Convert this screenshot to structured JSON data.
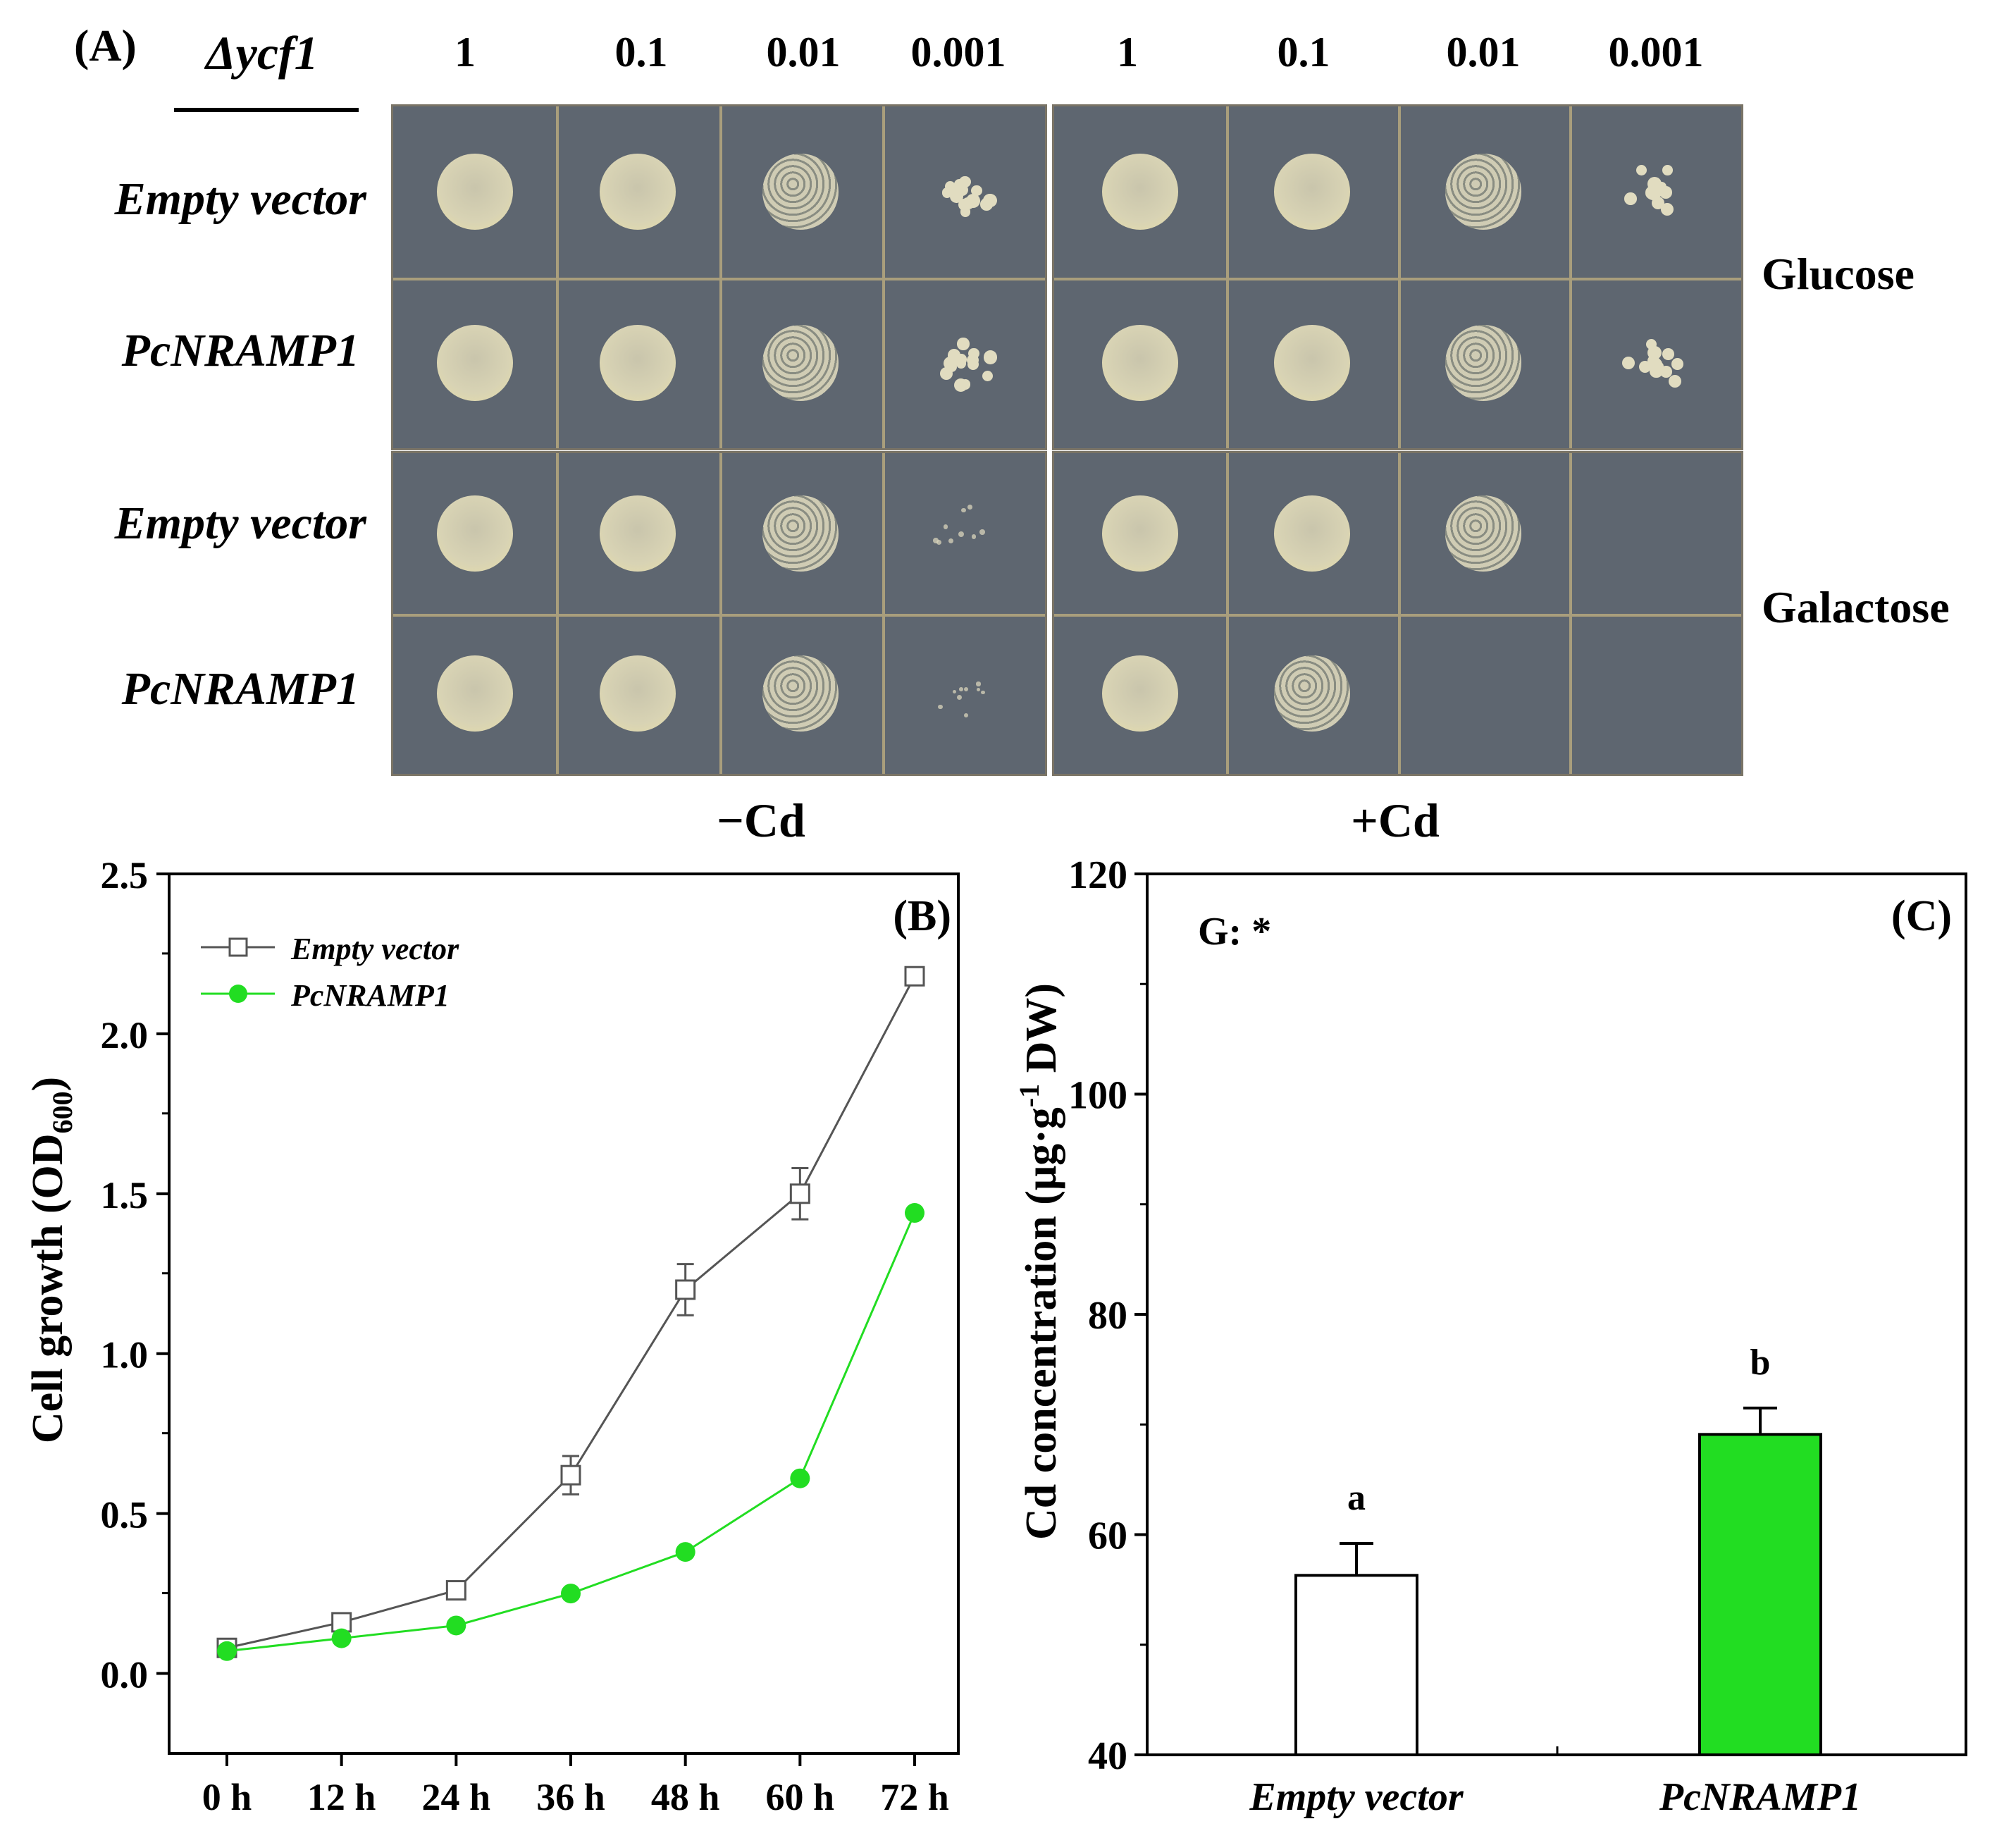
{
  "panel_a": {
    "label": "(A)",
    "strain_label": "Δycf1",
    "dilutions": [
      "1",
      "0.1",
      "0.01",
      "0.001",
      "1",
      "0.1",
      "0.01",
      "0.001"
    ],
    "rows": [
      "Empty vector",
      "PcNRAMP1",
      "Empty vector",
      "PcNRAMP1"
    ],
    "medium_labels": [
      "Glucose",
      "Galactose"
    ],
    "condition_labels": [
      "−Cd",
      "+Cd"
    ],
    "colors": {
      "plate": "#5e6670",
      "gridline": "#a99e7c",
      "yeast": "#d9d4b6"
    }
  },
  "chart_data": [
    {
      "type": "line",
      "panel_label": "(B)",
      "title": "",
      "xlabel": "",
      "ylabel": "Cell growth (OD600)",
      "ylabel_main": "Cell growth (OD",
      "ylabel_sub": "600",
      "ylabel_close": ")",
      "categories": [
        "0 h",
        "12 h",
        "24 h",
        "36 h",
        "48 h",
        "60 h",
        "72 h"
      ],
      "ylim": [
        -0.25,
        2.5
      ],
      "yticks": [
        "0.0",
        "0.5",
        "1.0",
        "1.5",
        "2.0",
        "2.5"
      ],
      "legend_position": "top-left",
      "series": [
        {
          "name": "Empty vector",
          "color": "#555555",
          "marker": "open-square",
          "values": [
            0.08,
            0.16,
            0.26,
            0.62,
            1.2,
            1.5,
            2.18
          ],
          "errors": [
            0.01,
            0.01,
            0.02,
            0.06,
            0.08,
            0.08,
            0.02
          ]
        },
        {
          "name": "PcNRAMP1",
          "color": "#22dd22",
          "marker": "filled-circle",
          "values": [
            0.07,
            0.11,
            0.15,
            0.25,
            0.38,
            0.61,
            1.44
          ],
          "errors": [
            0.0,
            0.0,
            0.0,
            0.0,
            0.0,
            0.0,
            0.0
          ]
        }
      ]
    },
    {
      "type": "bar",
      "panel_label": "(C)",
      "title": "",
      "xlabel": "",
      "ylabel": "Cd concentration (μg·g-1 DW)",
      "ylabel_main": "Cd concentration (μg·g",
      "ylabel_sup": "-1",
      "ylabel_tail": " DW)",
      "annotation": "G: *",
      "categories": [
        "Empty vector",
        "PcNRAMP1"
      ],
      "values": [
        56.3,
        69.1
      ],
      "errors": [
        2.9,
        2.4
      ],
      "letters": [
        "a",
        "b"
      ],
      "colors": [
        "#ffffff",
        "#22dd22"
      ],
      "ylim": [
        40,
        120
      ],
      "yticks": [
        "40",
        "60",
        "80",
        "100",
        "120"
      ]
    }
  ]
}
